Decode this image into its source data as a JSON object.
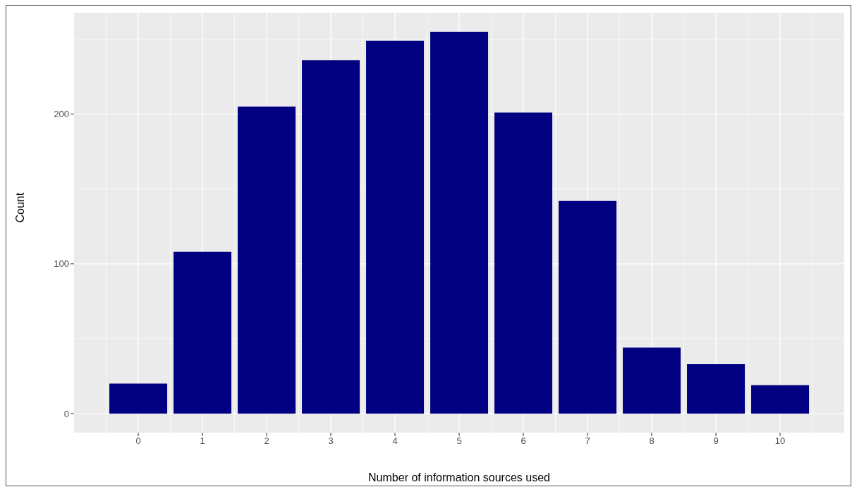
{
  "chart_data": {
    "type": "bar",
    "xlabel": "Number of information sources used",
    "ylabel": "Count",
    "categories": [
      "0",
      "1",
      "2",
      "3",
      "4",
      "5",
      "6",
      "7",
      "8",
      "9",
      "10"
    ],
    "values": [
      20,
      108,
      205,
      236,
      249,
      255,
      201,
      142,
      44,
      33,
      19
    ],
    "color": "#000080",
    "ylim": [
      -12.75,
      267.75
    ],
    "yticks": [
      0,
      100,
      200
    ],
    "grid": true
  }
}
